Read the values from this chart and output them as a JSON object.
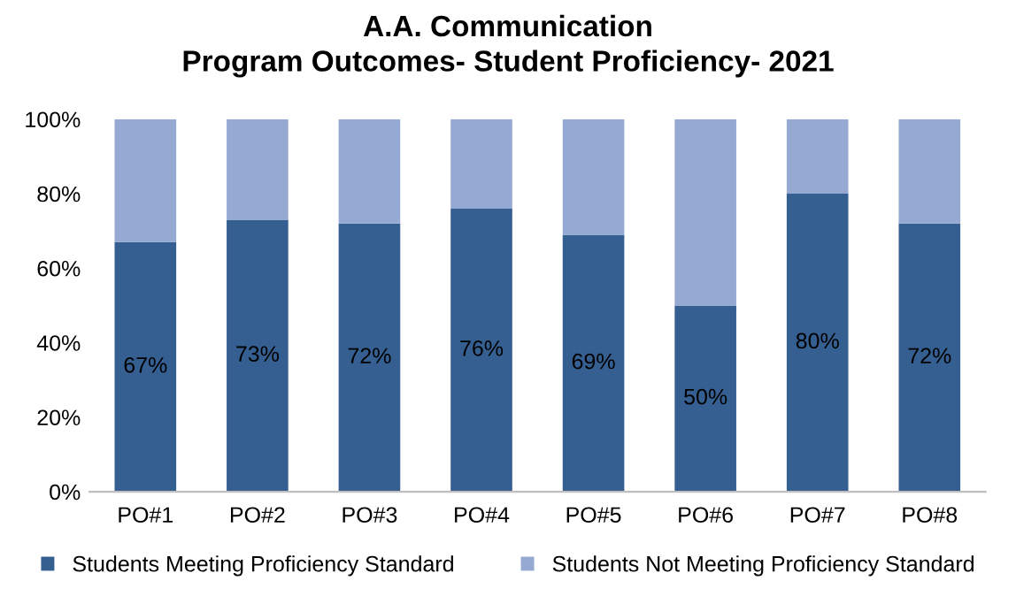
{
  "chart_data": {
    "type": "bar",
    "stacked": true,
    "title": "A.A. Communication\nProgram Outcomes- Student Proficiency- 2021",
    "categories": [
      "PO#1",
      "PO#2",
      "PO#3",
      "PO#4",
      "PO#5",
      "PO#6",
      "PO#7",
      "PO#8"
    ],
    "series": [
      {
        "name": "Students Meeting Proficiency Standard",
        "color": "#355f91",
        "values": [
          67,
          73,
          72,
          76,
          69,
          50,
          80,
          72
        ],
        "value_labels": [
          "67%",
          "73%",
          "72%",
          "76%",
          "69%",
          "50%",
          "80%",
          "72%"
        ]
      },
      {
        "name": "Students Not Meeting Proficiency Standard",
        "color": "#95a9d3",
        "values": [
          33,
          27,
          28,
          24,
          31,
          50,
          20,
          28
        ]
      }
    ],
    "ylim": [
      0,
      100
    ],
    "yticks": [
      {
        "value": 0,
        "label": "0%"
      },
      {
        "value": 20,
        "label": "20%"
      },
      {
        "value": 40,
        "label": "40%"
      },
      {
        "value": 60,
        "label": "60%"
      },
      {
        "value": 80,
        "label": "80%"
      },
      {
        "value": 100,
        "label": "100%"
      }
    ],
    "grid": false,
    "legend": "bottom"
  }
}
